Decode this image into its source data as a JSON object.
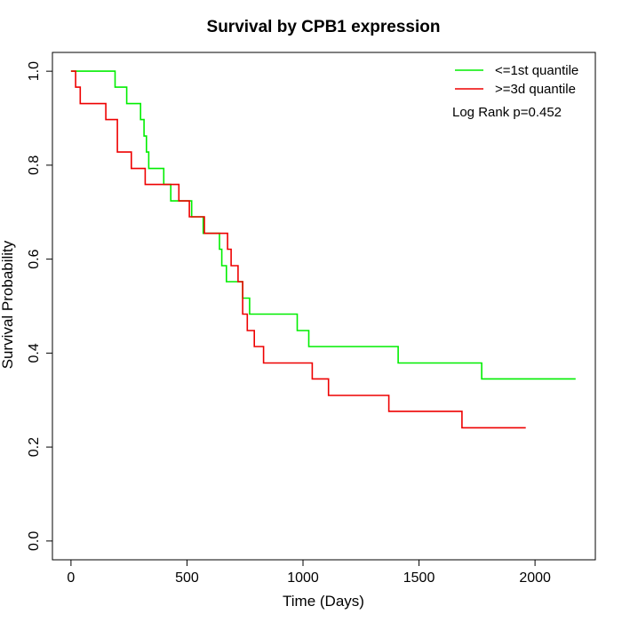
{
  "chart_data": {
    "type": "line",
    "title": "Survival by CPB1 expression",
    "xlabel": "Time (Days)",
    "ylabel": "Survival Probability",
    "xlim": [
      -80,
      2260
    ],
    "ylim": [
      -0.04,
      1.04
    ],
    "xticks": [
      0,
      500,
      1000,
      1500,
      2000
    ],
    "yticks": [
      0.0,
      0.2,
      0.4,
      0.6,
      0.8,
      1.0
    ],
    "xtick_labels": [
      "0",
      "500",
      "1000",
      "1500",
      "2000"
    ],
    "ytick_labels": [
      "0.0",
      "0.2",
      "0.4",
      "0.6",
      "0.8",
      "1.0"
    ],
    "step": true,
    "grid": false,
    "legend_position": "top-right",
    "annotation": "Log Rank p=0.452",
    "series": [
      {
        "name": "<=1st quantile",
        "color": "#00ee00",
        "x": [
          0,
          190,
          240,
          300,
          315,
          325,
          335,
          350,
          400,
          430,
          520,
          570,
          640,
          650,
          670,
          720,
          740,
          770,
          975,
          1025,
          1410,
          1770,
          2175
        ],
        "y": [
          1.0,
          0.966,
          0.931,
          0.897,
          0.862,
          0.828,
          0.793,
          0.793,
          0.759,
          0.724,
          0.69,
          0.655,
          0.621,
          0.586,
          0.552,
          0.552,
          0.517,
          0.483,
          0.448,
          0.414,
          0.379,
          0.345,
          0.345
        ]
      },
      {
        "name": ">=3d quantile",
        "color": "#ee0000",
        "x": [
          0,
          20,
          40,
          150,
          200,
          260,
          320,
          400,
          465,
          510,
          575,
          660,
          675,
          690,
          720,
          740,
          760,
          790,
          830,
          1040,
          1110,
          1370,
          1685,
          1960
        ],
        "y": [
          1.0,
          0.966,
          0.931,
          0.897,
          0.828,
          0.793,
          0.759,
          0.759,
          0.724,
          0.69,
          0.655,
          0.655,
          0.621,
          0.586,
          0.552,
          0.483,
          0.448,
          0.414,
          0.379,
          0.345,
          0.31,
          0.276,
          0.241,
          0.241
        ]
      }
    ]
  }
}
